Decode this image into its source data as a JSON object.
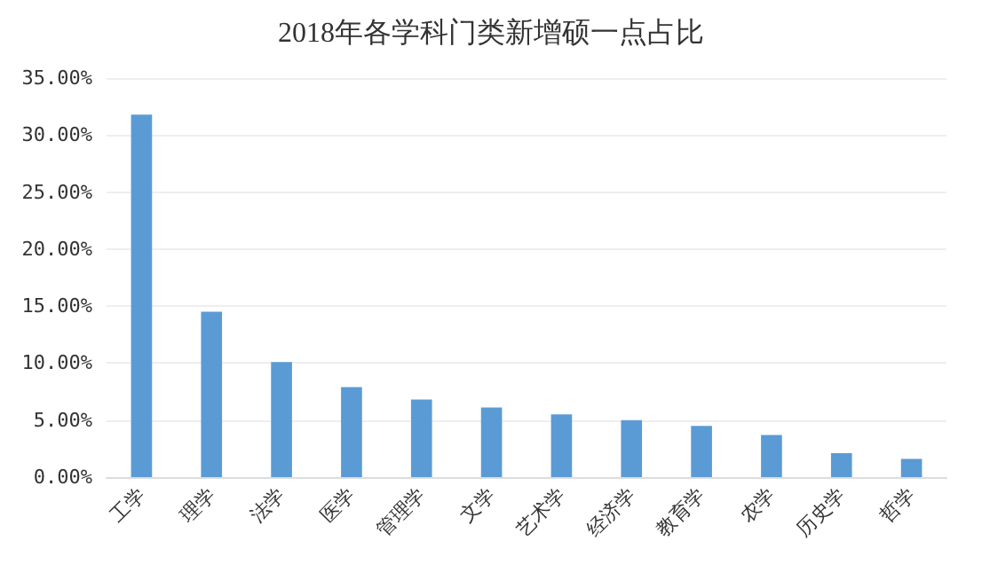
{
  "chart_data": {
    "type": "bar",
    "title": "2018年各学科门类新增硕一点占比",
    "categories": [
      "工学",
      "理学",
      "法学",
      "医学",
      "管理学",
      "文学",
      "艺术学",
      "经济学",
      "教育学",
      "农学",
      "历史学",
      "哲学"
    ],
    "values": [
      31.8,
      14.5,
      10.1,
      7.9,
      6.8,
      6.1,
      5.5,
      5.0,
      4.5,
      3.7,
      2.1,
      1.6
    ],
    "color": "#5b9bd5",
    "ylim": [
      0,
      35
    ],
    "yticks": [
      {
        "value": 0,
        "label": "0.00%"
      },
      {
        "value": 5,
        "label": "5.00%"
      },
      {
        "value": 10,
        "label": "10.00%"
      },
      {
        "value": 15,
        "label": "15.00%"
      },
      {
        "value": 20,
        "label": "20.00%"
      },
      {
        "value": 25,
        "label": "25.00%"
      },
      {
        "value": 30,
        "label": "30.00%"
      },
      {
        "value": 35,
        "label": "35.00%"
      }
    ],
    "grid": "y"
  }
}
